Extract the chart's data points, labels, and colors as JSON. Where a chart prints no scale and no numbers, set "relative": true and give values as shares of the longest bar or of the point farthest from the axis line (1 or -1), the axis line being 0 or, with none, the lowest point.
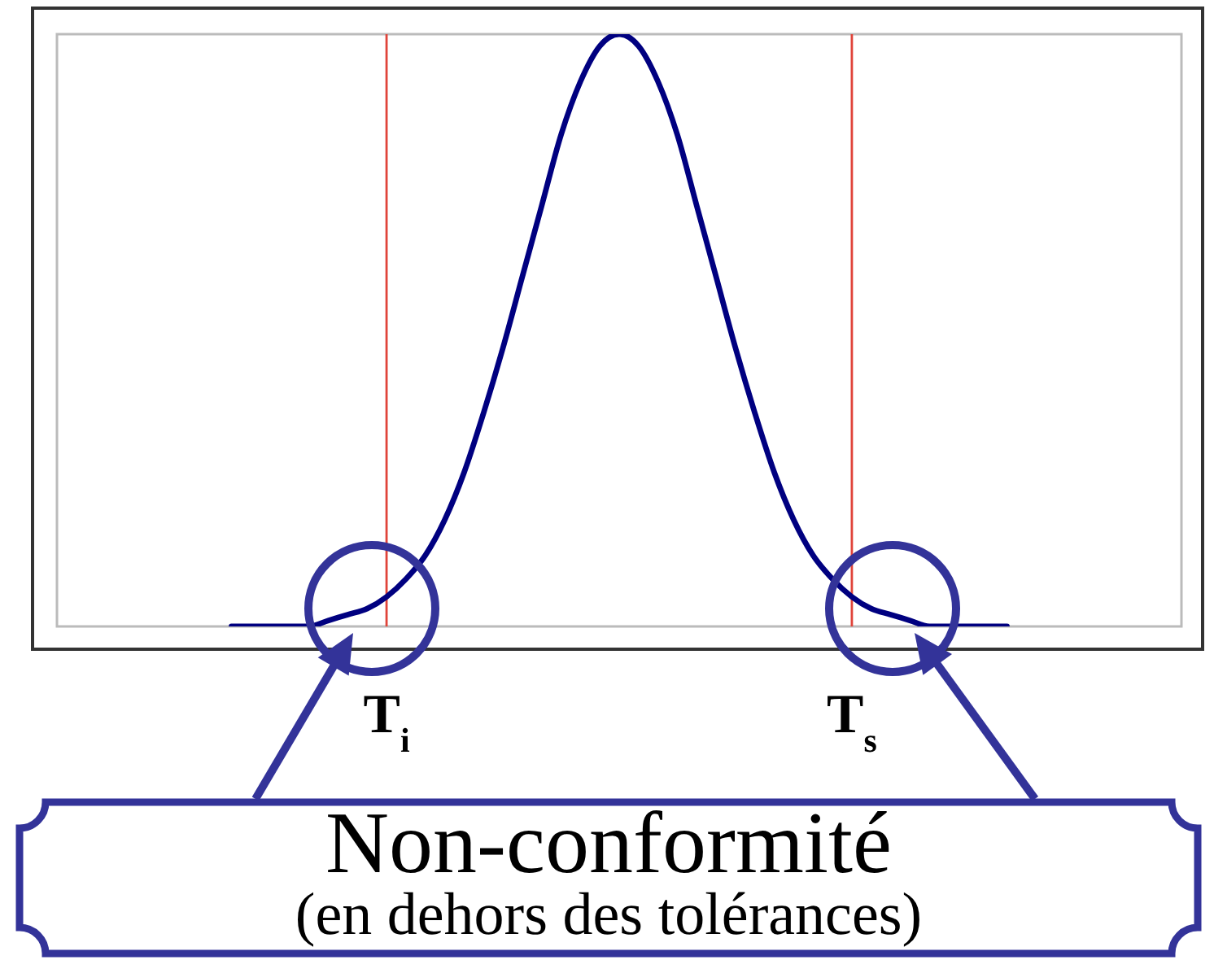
{
  "chart_data": {
    "type": "line",
    "categories": [
      null,
      null,
      null,
      null,
      null,
      null,
      null,
      null,
      null,
      null,
      null,
      null,
      null,
      null,
      null,
      null,
      null,
      "T$_{i}$",
      null,
      null,
      null,
      null,
      null,
      null,
      null,
      null,
      null,
      null,
      null,
      null,
      null,
      null,
      null,
      null,
      null,
      null,
      null,
      null,
      null,
      null,
      null,
      "T$_{s}$",
      null,
      null,
      null,
      null,
      null,
      null,
      null,
      null,
      null,
      null,
      null,
      null,
      null,
      null,
      null,
      null,
      null
    ],
    "values": [
      null,
      null,
      null,
      null,
      null,
      null,
      null,
      null,
      null,
      0,
      0,
      0,
      0,
      0,
      0.01,
      0.02,
      0.03,
      0.05,
      0.08,
      0.12,
      0.18,
      0.26,
      0.36,
      0.47,
      0.59,
      0.71,
      0.83,
      0.92,
      0.98,
      1,
      0.98,
      0.92,
      0.83,
      0.71,
      0.59,
      0.47,
      0.36,
      0.26,
      0.18,
      0.12,
      0.08,
      0.05,
      0.03,
      0.02,
      0.01,
      0,
      0,
      0,
      0,
      0,
      null,
      null,
      null,
      null,
      null,
      null,
      null,
      null,
      null
    ],
    "color": "#000080",
    "relative": true,
    "marker": "none",
    "grid": false,
    "legend": false,
    "tick_labels": "x",
    "ref_lines": [
      {
        "axis": "x",
        "value": "T$_{i}$",
        "color": "#e0443a"
      },
      {
        "axis": "x",
        "value": "T$_{s}$",
        "color": "#e0443a"
      }
    ],
    "annotations": [
      "Non-conformité",
      "(en dehors des tolérances)"
    ]
  }
}
